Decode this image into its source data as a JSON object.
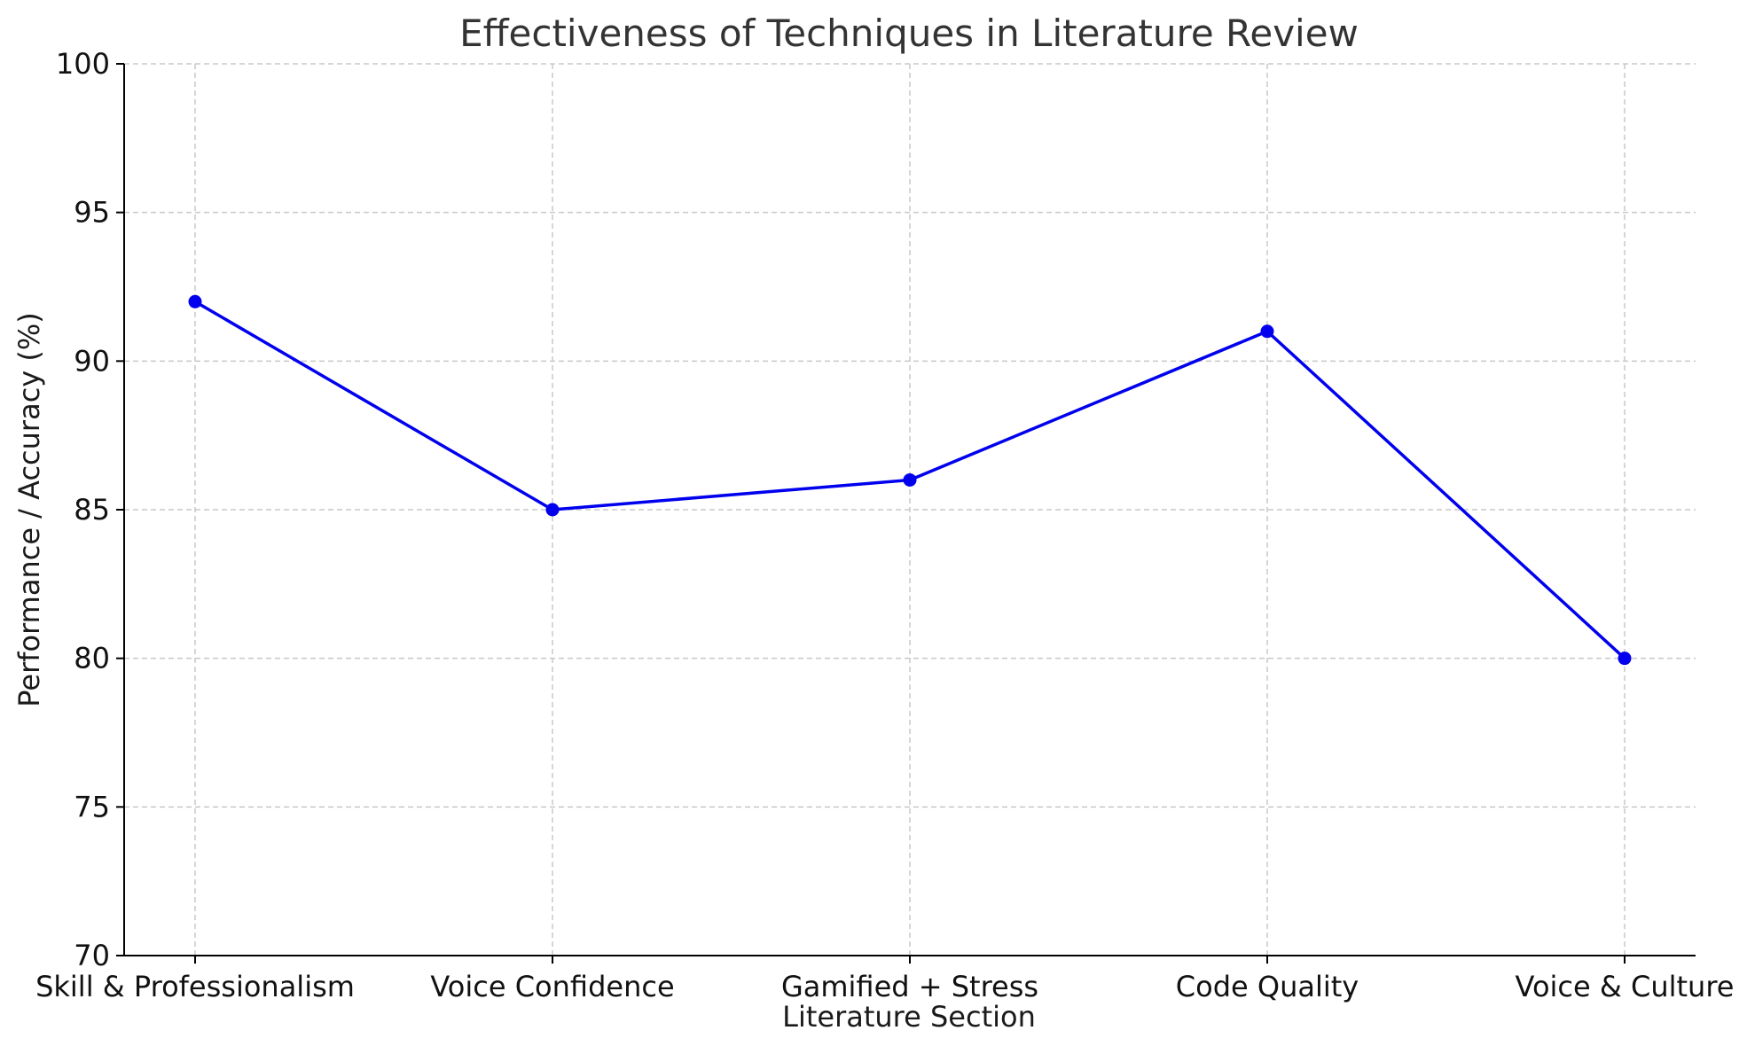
{
  "chart_data": {
    "type": "line",
    "title": "Effectiveness of Techniques in Literature Review",
    "xlabel": "Literature Section",
    "ylabel": "Performance / Accuracy (%)",
    "categories": [
      "Skill & Professionalism",
      "Voice Confidence",
      "Gamified + Stress",
      "Code Quality",
      "Voice & Culture"
    ],
    "series": [
      {
        "values": [
          92,
          85,
          86,
          91,
          80
        ],
        "color": "#0000ee"
      }
    ],
    "ylim": [
      70,
      100
    ],
    "yticks": [
      70,
      75,
      80,
      85,
      90,
      95,
      100
    ],
    "grid": true,
    "marker": "circle"
  }
}
